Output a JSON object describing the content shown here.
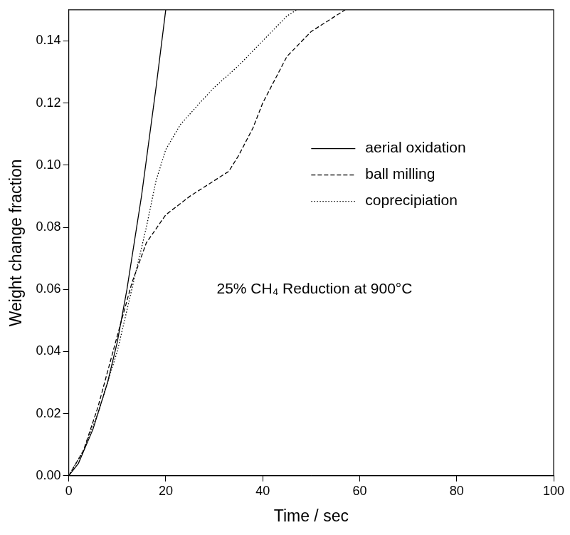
{
  "chart_data": {
    "type": "line",
    "x_label": "Time / sec",
    "y_label": "Weight change fraction",
    "annotation": "25% CH₄ Reduction at 900°C",
    "xlim": [
      0,
      100
    ],
    "xticks": [
      0,
      20,
      40,
      60,
      80,
      100
    ],
    "ylim": [
      0,
      0.15
    ],
    "yticks": [
      {
        "value": 0,
        "label": "0.00"
      },
      {
        "value": 0.02,
        "label": "0.02"
      },
      {
        "value": 0.04,
        "label": "0.04"
      },
      {
        "value": 0.06,
        "label": "0.06"
      },
      {
        "value": 0.08,
        "label": "0.08"
      },
      {
        "value": 0.1,
        "label": "0.10"
      },
      {
        "value": 0.12,
        "label": "0.12"
      },
      {
        "value": 0.14,
        "label": "0.14"
      }
    ],
    "grid": false,
    "legend": "upper right",
    "series": [
      {
        "name": "aerial oxidation",
        "color": "#000000",
        "line_style": "solid",
        "x": [
          0,
          2,
          5,
          8,
          10,
          12,
          15,
          18,
          20
        ],
        "values": [
          0,
          0.004,
          0.015,
          0.03,
          0.043,
          0.06,
          0.09,
          0.125,
          0.15
        ]
      },
      {
        "name": "ball milling",
        "color": "#000000",
        "line_style": "dashed",
        "x": [
          0,
          3,
          6,
          10,
          13,
          16,
          20,
          25,
          30,
          33,
          35,
          38,
          40,
          45,
          50,
          55,
          57
        ],
        "values": [
          0,
          0.008,
          0.022,
          0.045,
          0.062,
          0.075,
          0.084,
          0.09,
          0.095,
          0.098,
          0.103,
          0.112,
          0.12,
          0.135,
          0.143,
          0.148,
          0.15
        ]
      },
      {
        "name": "coprecipiation",
        "color": "#000000",
        "line_style": "dotted",
        "x": [
          0,
          3,
          6,
          10,
          13,
          16,
          18,
          20,
          23,
          27,
          30,
          35,
          40,
          45,
          47
        ],
        "values": [
          0,
          0.008,
          0.02,
          0.04,
          0.06,
          0.08,
          0.095,
          0.105,
          0.113,
          0.12,
          0.125,
          0.132,
          0.14,
          0.148,
          0.15
        ]
      }
    ]
  }
}
